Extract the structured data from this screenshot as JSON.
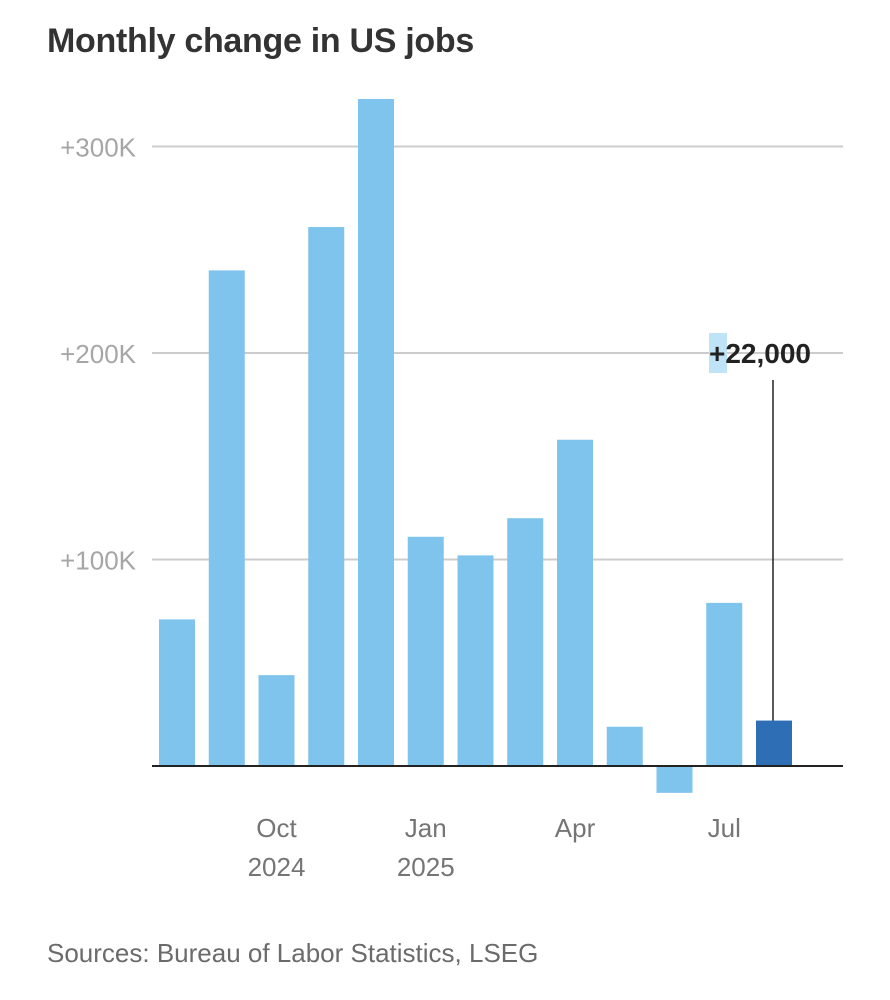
{
  "title": "Monthly change in US jobs",
  "source": "Sources: Bureau of Labor Statistics, LSEG",
  "colors": {
    "bar": "#7fc4ec",
    "highlight": "#2e6eb5",
    "grid": "#cccccc",
    "axis": "#222222",
    "tick_text": "#a6a6a6",
    "month_text": "#757575",
    "annotation": "#222222",
    "annotation_bg": "#bfe3f7"
  },
  "chart_data": {
    "type": "bar",
    "title": "Monthly change in US jobs",
    "xlabel": "",
    "ylabel": "",
    "ylim": [
      -30000,
      335000
    ],
    "yticks": [
      100000,
      200000,
      300000
    ],
    "ytick_labels": [
      "+100K",
      "+200K",
      "+300K"
    ],
    "grid": true,
    "categories": [
      "Aug 2024",
      "Sep 2024",
      "Oct 2024",
      "Nov 2024",
      "Dec 2024",
      "Jan 2025",
      "Feb 2025",
      "Mar 2025",
      "Apr 2025",
      "May 2025",
      "Jun 2025",
      "Jul 2025",
      "Aug 2025"
    ],
    "values": [
      71000,
      240000,
      44000,
      261000,
      323000,
      111000,
      102000,
      120000,
      158000,
      19000,
      -13000,
      79000,
      22000
    ],
    "highlight_index": 12,
    "x_tick_labels": [
      {
        "index": 2,
        "month": "Oct",
        "year": "2024"
      },
      {
        "index": 5,
        "month": "Jan",
        "year": "2025"
      },
      {
        "index": 8,
        "month": "Apr",
        "year": ""
      },
      {
        "index": 11,
        "month": "Jul",
        "year": ""
      }
    ],
    "annotation": {
      "index": 12,
      "text": "+22,000"
    }
  }
}
